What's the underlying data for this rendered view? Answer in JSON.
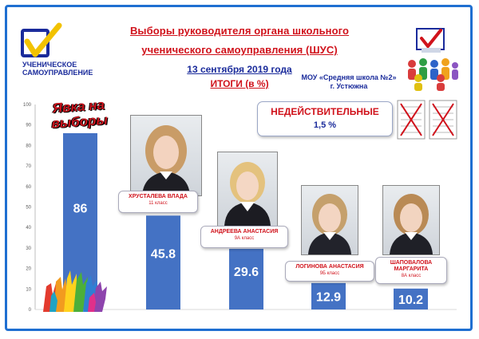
{
  "header": {
    "title_line1": "Выборы руководителя органа школьного",
    "title_line2": "ученического самоуправления (ШУС)",
    "date": "13 сентября 2019 года",
    "results": "ИТОГИ (в %)",
    "school_line1": "МОУ «Средняя школа №2»",
    "school_line2": "г. Устюжна"
  },
  "logo": {
    "icon": "checkmark-logo-icon",
    "line1": "УЧЕНИЧЕСКОЕ",
    "line2": "САМОУПРАВЛЕНИЕ"
  },
  "invalid": {
    "label": "НЕДЕЙСТВИТЕЛЬНЫЕ",
    "value": "1,5 %"
  },
  "yavka_label_line1": "Явка на",
  "yavka_label_line2": "выборы",
  "candidates": [
    {
      "name": "ХРУСТАЛЕВА ВЛАДА",
      "class": "11 класс"
    },
    {
      "name": "АНДРЕЕВА АНАСТАСИЯ",
      "class": "9А класс"
    },
    {
      "name": "ЛОГИНОВА АНАСТАСИЯ",
      "class": "9Б класс"
    },
    {
      "name_line1": "ШАПОВАЛОВА",
      "name_line2": "МАРГАРИТА",
      "class": "8А класс"
    }
  ],
  "colors": {
    "bar": "#4472c4",
    "title_red": "#d0121b",
    "text_blue": "#1a2b9b",
    "frame": "#1f6fd1"
  },
  "chart_data": {
    "type": "bar",
    "categories": [
      "Явка на выборы",
      "ХРУСТАЛЕВА ВЛАДА",
      "АНДРЕЕВА АНАСТАСИЯ",
      "ЛОГИНОВА АНАСТАСИЯ",
      "ШАПОВАЛОВА МАРГАРИТА"
    ],
    "values": [
      86,
      45.8,
      29.6,
      12.9,
      10.2
    ],
    "value_labels": [
      "86",
      "45.8",
      "29.6",
      "12.9",
      "10.2"
    ],
    "title": "ИТОГИ (в %)",
    "xlabel": "",
    "ylabel": "",
    "ylim": [
      0,
      100
    ],
    "yticks": [
      "0",
      "10",
      "20",
      "30",
      "40",
      "50",
      "60",
      "70",
      "80",
      "90",
      "100"
    ],
    "grid": false,
    "legend": "none"
  }
}
